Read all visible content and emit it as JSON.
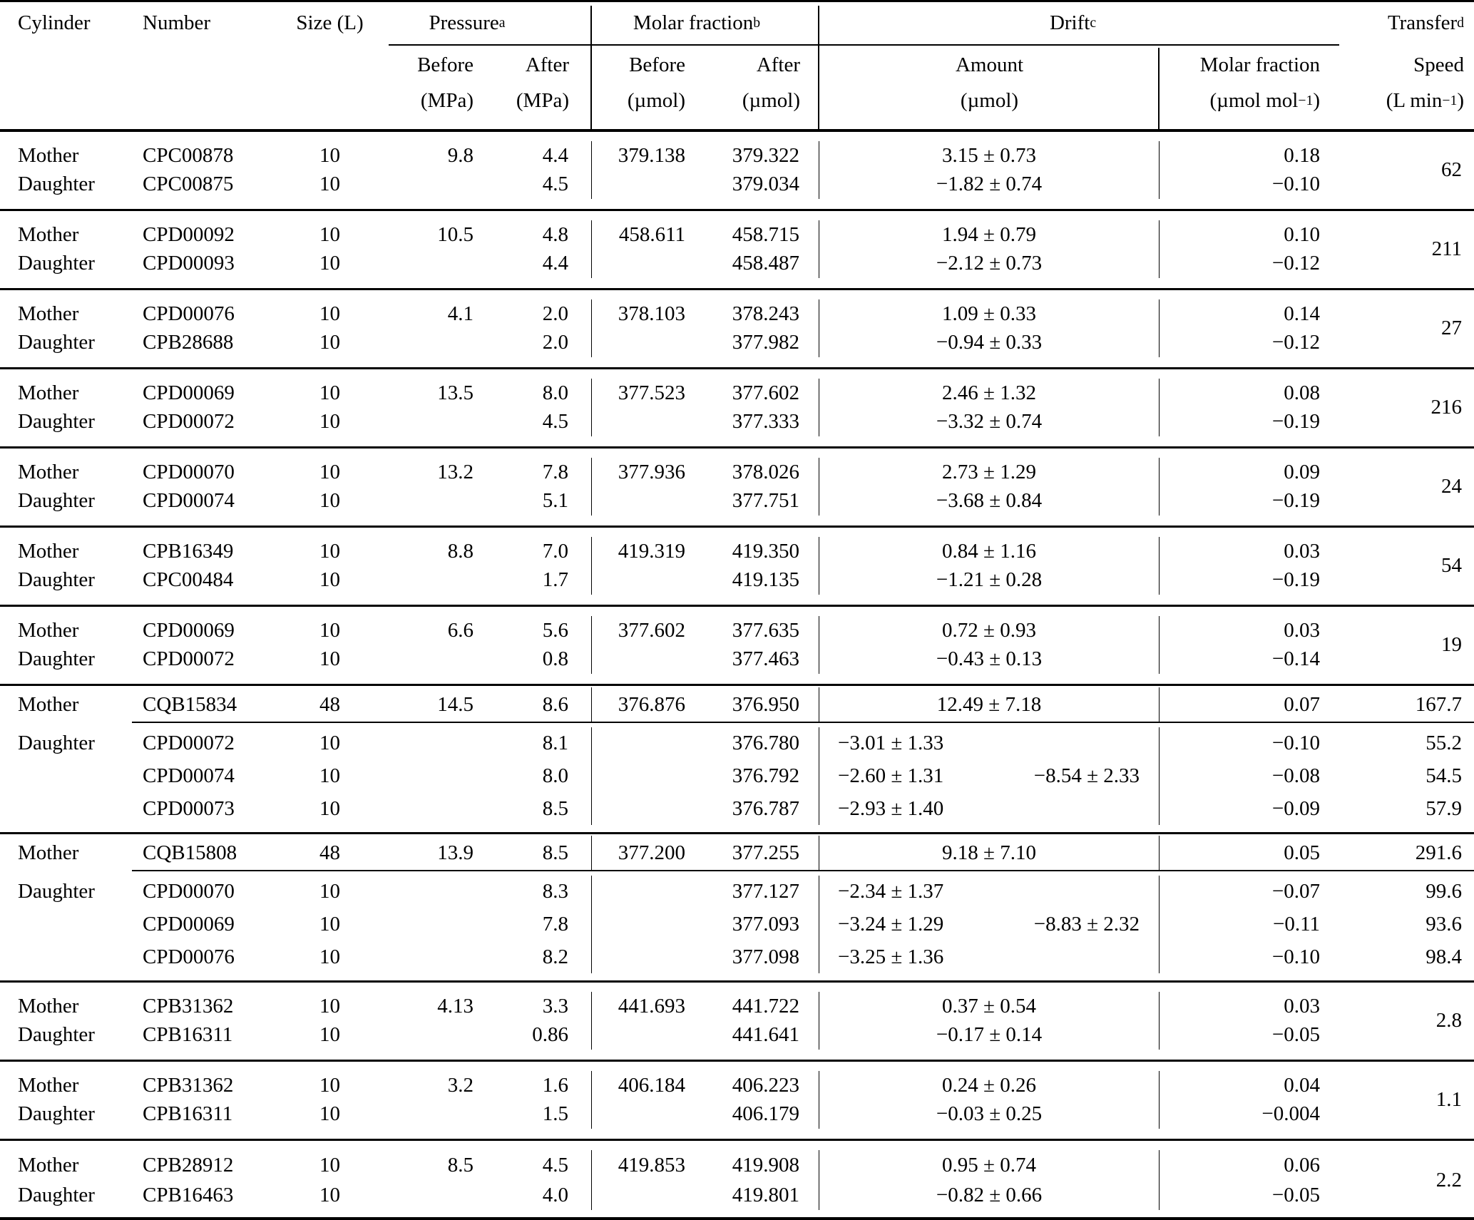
{
  "table": {
    "header": {
      "cylinder": "Cylinder",
      "number": "Number",
      "size": "Size (L)",
      "pressure_group": "Pressure^a^",
      "molar_fraction_group": "Molar fraction^b^",
      "drift_group": "Drift^c^",
      "transfer_group": "Transfer^d^",
      "sub": {
        "p_before": {
          "label": "Before",
          "unit": "(MPa)"
        },
        "p_after": {
          "label": "After",
          "unit": "(MPa)"
        },
        "mf_before": {
          "label": "Before",
          "unit": "(µmol)"
        },
        "mf_after": {
          "label": "After",
          "unit": "(µmol)"
        },
        "amount": {
          "label": "Amount",
          "unit": "(µmol)"
        },
        "drift_mf": {
          "label": "Molar fraction",
          "unit": "(µmol mol^−1^)"
        },
        "speed": {
          "label": "Speed",
          "unit": "(L min^−1^)"
        }
      }
    },
    "groups": [
      {
        "speed": "62",
        "rows": [
          {
            "role": "Mother",
            "number": "CPC00878",
            "size": "10",
            "p_before": "9.8",
            "p_after": "4.4",
            "mf_before": "379.138",
            "mf_after": "379.322",
            "amount": "3.15 ± 0.73",
            "drift_mf": "0.18"
          },
          {
            "role": "Daughter",
            "number": "CPC00875",
            "size": "10",
            "p_before": "",
            "p_after": "4.5",
            "mf_before": "",
            "mf_after": "379.034",
            "amount": "−1.82 ± 0.74",
            "drift_mf": "−0.10"
          }
        ]
      },
      {
        "speed": "211",
        "rows": [
          {
            "role": "Mother",
            "number": "CPD00092",
            "size": "10",
            "p_before": "10.5",
            "p_after": "4.8",
            "mf_before": "458.611",
            "mf_after": "458.715",
            "amount": "1.94 ± 0.79",
            "drift_mf": "0.10"
          },
          {
            "role": "Daughter",
            "number": "CPD00093",
            "size": "10",
            "p_before": "",
            "p_after": "4.4",
            "mf_before": "",
            "mf_after": "458.487",
            "amount": "−2.12 ± 0.73",
            "drift_mf": "−0.12"
          }
        ]
      },
      {
        "speed": "27",
        "rows": [
          {
            "role": "Mother",
            "number": "CPD00076",
            "size": "10",
            "p_before": "4.1",
            "p_after": "2.0",
            "mf_before": "378.103",
            "mf_after": "378.243",
            "amount": "1.09 ± 0.33",
            "drift_mf": "0.14"
          },
          {
            "role": "Daughter",
            "number": "CPB28688",
            "size": "10",
            "p_before": "",
            "p_after": "2.0",
            "mf_before": "",
            "mf_after": "377.982",
            "amount": "−0.94 ± 0.33",
            "drift_mf": "−0.12"
          }
        ]
      },
      {
        "speed": "216",
        "rows": [
          {
            "role": "Mother",
            "number": "CPD00069",
            "size": "10",
            "p_before": "13.5",
            "p_after": "8.0",
            "mf_before": "377.523",
            "mf_after": "377.602",
            "amount": "2.46 ± 1.32",
            "drift_mf": "0.08"
          },
          {
            "role": "Daughter",
            "number": "CPD00072",
            "size": "10",
            "p_before": "",
            "p_after": "4.5",
            "mf_before": "",
            "mf_after": "377.333",
            "amount": "−3.32 ± 0.74",
            "drift_mf": "−0.19"
          }
        ]
      },
      {
        "speed": "24",
        "rows": [
          {
            "role": "Mother",
            "number": "CPD00070",
            "size": "10",
            "p_before": "13.2",
            "p_after": "7.8",
            "mf_before": "377.936",
            "mf_after": "378.026",
            "amount": "2.73 ± 1.29",
            "drift_mf": "0.09"
          },
          {
            "role": "Daughter",
            "number": "CPD00074",
            "size": "10",
            "p_before": "",
            "p_after": "5.1",
            "mf_before": "",
            "mf_after": "377.751",
            "amount": "−3.68 ± 0.84",
            "drift_mf": "−0.19"
          }
        ]
      },
      {
        "speed": "54",
        "rows": [
          {
            "role": "Mother",
            "number": "CPB16349",
            "size": "10",
            "p_before": "8.8",
            "p_after": "7.0",
            "mf_before": "419.319",
            "mf_after": "419.350",
            "amount": "0.84 ± 1.16",
            "drift_mf": "0.03"
          },
          {
            "role": "Daughter",
            "number": "CPC00484",
            "size": "10",
            "p_before": "",
            "p_after": "1.7",
            "mf_before": "",
            "mf_after": "419.135",
            "amount": "−1.21 ± 0.28",
            "drift_mf": "−0.19"
          }
        ]
      },
      {
        "speed": "19",
        "rows": [
          {
            "role": "Mother",
            "number": "CPD00069",
            "size": "10",
            "p_before": "6.6",
            "p_after": "5.6",
            "mf_before": "377.602",
            "mf_after": "377.635",
            "amount": "0.72 ± 0.93",
            "drift_mf": "0.03"
          },
          {
            "role": "Daughter",
            "number": "CPD00072",
            "size": "10",
            "p_before": "",
            "p_after": "0.8",
            "mf_before": "",
            "mf_after": "377.463",
            "amount": "−0.43 ± 0.13",
            "drift_mf": "−0.14"
          }
        ]
      },
      {
        "mother": {
          "role": "Mother",
          "number": "CQB15834",
          "size": "48",
          "p_before": "14.5",
          "p_after": "8.6",
          "mf_before": "376.876",
          "mf_after": "376.950",
          "amount": "12.49 ± 7.18",
          "drift_mf": "0.07",
          "speed": "167.7"
        },
        "daughter_role": "Daughter",
        "daughters": [
          {
            "number": "CPD00072",
            "size": "10",
            "p_after": "8.1",
            "mf_after": "376.780",
            "amount": "−3.01 ± 1.33",
            "combined": "",
            "drift_mf": "−0.10",
            "speed": "55.2"
          },
          {
            "number": "CPD00074",
            "size": "10",
            "p_after": "8.0",
            "mf_after": "376.792",
            "amount": "−2.60 ± 1.31",
            "combined": "−8.54 ± 2.33",
            "drift_mf": "−0.08",
            "speed": "54.5"
          },
          {
            "number": "CPD00073",
            "size": "10",
            "p_after": "8.5",
            "mf_after": "376.787",
            "amount": "−2.93 ± 1.40",
            "combined": "",
            "drift_mf": "−0.09",
            "speed": "57.9"
          }
        ]
      },
      {
        "mother": {
          "role": "Mother",
          "number": "CQB15808",
          "size": "48",
          "p_before": "13.9",
          "p_after": "8.5",
          "mf_before": "377.200",
          "mf_after": "377.255",
          "amount": "9.18 ± 7.10",
          "drift_mf": "0.05",
          "speed": "291.6"
        },
        "daughter_role": "Daughter",
        "daughters": [
          {
            "number": "CPD00070",
            "size": "10",
            "p_after": "8.3",
            "mf_after": "377.127",
            "amount": "−2.34 ± 1.37",
            "combined": "",
            "drift_mf": "−0.07",
            "speed": "99.6"
          },
          {
            "number": "CPD00069",
            "size": "10",
            "p_after": "7.8",
            "mf_after": "377.093",
            "amount": "−3.24 ± 1.29",
            "combined": "−8.83 ± 2.32",
            "drift_mf": "−0.11",
            "speed": "93.6"
          },
          {
            "number": "CPD00076",
            "size": "10",
            "p_after": "8.2",
            "mf_after": "377.098",
            "amount": "−3.25 ± 1.36",
            "combined": "",
            "drift_mf": "−0.10",
            "speed": "98.4"
          }
        ]
      },
      {
        "speed": "2.8",
        "rows": [
          {
            "role": "Mother",
            "number": "CPB31362",
            "size": "10",
            "p_before": "4.13",
            "p_after": "3.3",
            "mf_before": "441.693",
            "mf_after": "441.722",
            "amount": "0.37 ± 0.54",
            "drift_mf": "0.03"
          },
          {
            "role": "Daughter",
            "number": "CPB16311",
            "size": "10",
            "p_before": "",
            "p_after": "0.86",
            "mf_before": "",
            "mf_after": "441.641",
            "amount": "−0.17 ± 0.14",
            "drift_mf": "−0.05"
          }
        ]
      },
      {
        "speed": "1.1",
        "rows": [
          {
            "role": "Mother",
            "number": "CPB31362",
            "size": "10",
            "p_before": "3.2",
            "p_after": "1.6",
            "mf_before": "406.184",
            "mf_after": "406.223",
            "amount": "0.24 ± 0.26",
            "drift_mf": "0.04"
          },
          {
            "role": "Daughter",
            "number": "CPB16311",
            "size": "10",
            "p_before": "",
            "p_after": "1.5",
            "mf_before": "",
            "mf_after": "406.179",
            "amount": "−0.03 ± 0.25",
            "drift_mf": "−0.004"
          }
        ]
      },
      {
        "speed": "2.2",
        "rows": [
          {
            "role": "Mother",
            "number": "CPB28912",
            "size": "10",
            "p_before": "8.5",
            "p_after": "4.5",
            "mf_before": "419.853",
            "mf_after": "419.908",
            "amount": "0.95 ± 0.74",
            "drift_mf": "0.06"
          },
          {
            "role": "Daughter",
            "number": "CPB16463",
            "size": "10",
            "p_before": "",
            "p_after": "4.0",
            "mf_before": "",
            "mf_after": "419.801",
            "amount": "−0.82 ± 0.66",
            "drift_mf": "−0.05"
          }
        ]
      }
    ]
  }
}
